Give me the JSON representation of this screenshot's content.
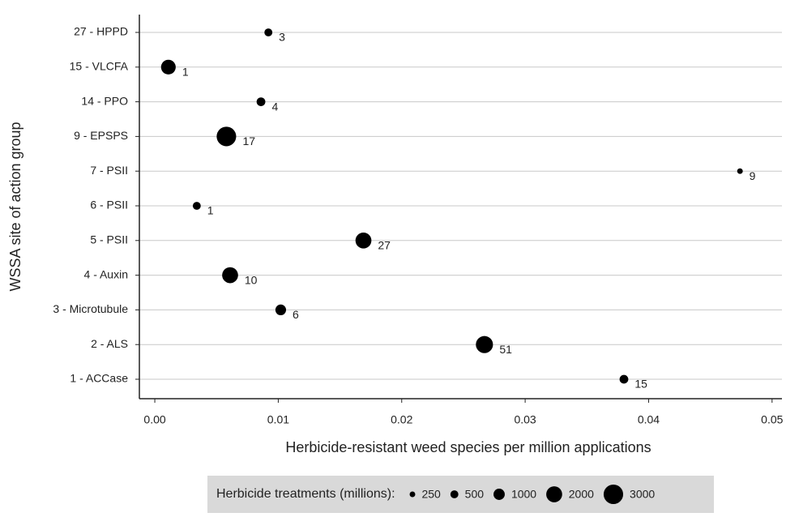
{
  "chart_data": {
    "type": "bubble",
    "x_label": "Herbicide-resistant weed species per million applications",
    "y_label": "WSSA site of action group",
    "categories": [
      "27 - HPPD",
      "15 - VLCFA",
      "14 - PPO",
      "9 - EPSPS",
      "7 - PSII",
      "6 - PSII",
      "5 - PSII",
      "4 - Auxin",
      "3 - Microtubule",
      "2 - ALS",
      "1 - ACCase"
    ],
    "values": [
      0.0092,
      0.0011,
      0.0086,
      0.0058,
      0.0474,
      0.0034,
      0.0169,
      0.0061,
      0.0102,
      0.0267,
      0.038
    ],
    "sizes": [
      500,
      1700,
      600,
      3000,
      250,
      500,
      2000,
      2000,
      900,
      2300,
      600
    ],
    "labels": [
      3,
      1,
      4,
      17,
      9,
      1,
      27,
      10,
      6,
      51,
      15
    ],
    "color": "#000000",
    "xlim": [
      -0.00125,
      0.0508
    ],
    "xticks": [
      {
        "value": 0,
        "label": "0.00"
      },
      0.01,
      0.02,
      0.03,
      0.04,
      0.05
    ],
    "grid": true,
    "legend_title": "Herbicide treatments (millions):",
    "legend_sizes": [
      250,
      500,
      1000,
      2000,
      3000
    ]
  }
}
